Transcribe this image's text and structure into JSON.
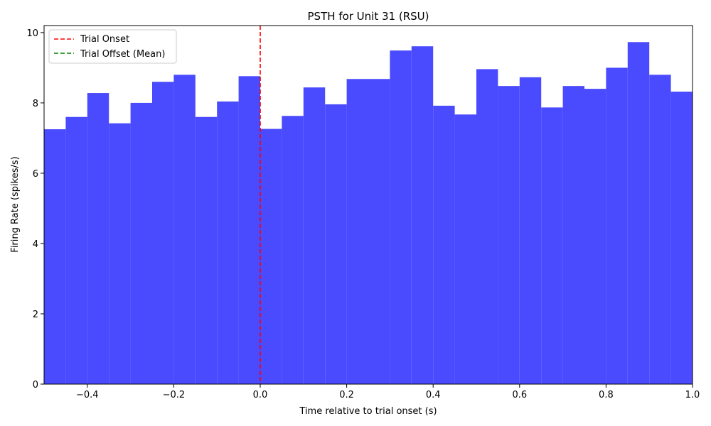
{
  "chart_data": {
    "type": "bar",
    "title": "PSTH for Unit 31 (RSU)",
    "xlabel": "Time relative to trial onset (s)",
    "ylabel": "Firing Rate (spikes/s)",
    "xlim": [
      -0.5,
      1.0
    ],
    "ylim": [
      0,
      10.2
    ],
    "bin_width": 0.05,
    "bin_starts": [
      -0.5,
      -0.45,
      -0.4,
      -0.35,
      -0.3,
      -0.25,
      -0.2,
      -0.15,
      -0.1,
      -0.05,
      0.0,
      0.05,
      0.1,
      0.15,
      0.2,
      0.25,
      0.3,
      0.35,
      0.4,
      0.45,
      0.5,
      0.55,
      0.6,
      0.65,
      0.7,
      0.75,
      0.8,
      0.85,
      0.9,
      0.95
    ],
    "values": [
      7.25,
      7.6,
      8.28,
      7.42,
      8.0,
      8.6,
      8.8,
      7.6,
      8.04,
      8.76,
      7.26,
      7.63,
      8.44,
      7.96,
      8.68,
      8.68,
      9.49,
      9.61,
      7.92,
      7.67,
      8.96,
      8.48,
      8.73,
      7.87,
      8.48,
      8.4,
      9.0,
      9.73,
      8.8,
      8.32
    ],
    "xticks": [
      -0.4,
      -0.2,
      0.0,
      0.2,
      0.4,
      0.6,
      0.8,
      1.0
    ],
    "xtick_labels": [
      "−0.4",
      "−0.2",
      "0.0",
      "0.2",
      "0.4",
      "0.6",
      "0.8",
      "1.0"
    ],
    "yticks": [
      0,
      2,
      4,
      6,
      8,
      10
    ],
    "ytick_labels": [
      "0",
      "2",
      "4",
      "6",
      "8",
      "10"
    ],
    "bar_color": "#4a4aff",
    "vlines": [
      {
        "name": "Trial Onset",
        "x": 0.0,
        "color": "#ff0000",
        "style": "dashed"
      },
      {
        "name": "Trial Offset (Mean)",
        "color": "#008000",
        "style": "dashed"
      }
    ],
    "legend": {
      "placement": "top-left",
      "entries": [
        {
          "label": "Trial Onset",
          "color": "#ff0000"
        },
        {
          "label": "Trial Offset (Mean)",
          "color": "#008000"
        }
      ]
    },
    "grid": false
  }
}
